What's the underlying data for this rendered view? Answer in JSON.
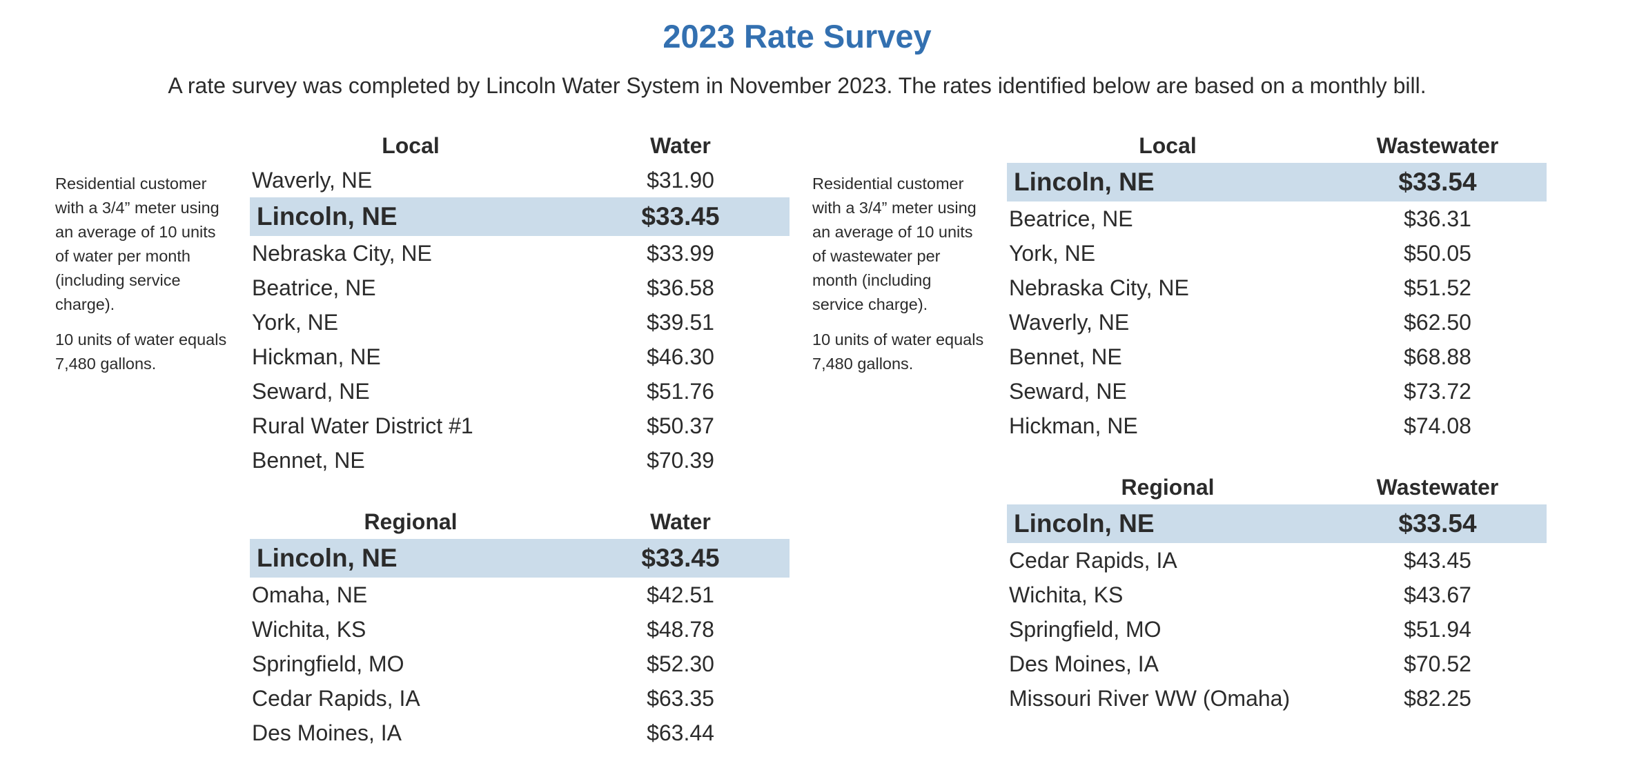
{
  "page": {
    "title": "2023 Rate Survey",
    "intro": "A rate survey was completed by Lincoln Water System in November 2023. The rates identified below are based on a monthly bill."
  },
  "notes": {
    "water": {
      "line1": "Residential customer with a 3/4” meter using an average of 10 units of water per month (including service charge).",
      "line2": "10 units of water equals 7,480 gallons."
    },
    "wastewater": {
      "line1": "Residential customer with a 3/4” meter using an average of 10 units of wastewater per month (including service charge).",
      "line2": "10 units of water equals 7,480 gallons."
    }
  },
  "tables": {
    "water_local": {
      "header_name": "Local",
      "header_value": "Water",
      "rows": [
        {
          "name": "Waverly, NE",
          "value": "$31.90"
        },
        {
          "name": "Lincoln, NE",
          "value": "$33.45"
        },
        {
          "name": "Nebraska City, NE",
          "value": "$33.99"
        },
        {
          "name": "Beatrice, NE",
          "value": "$36.58"
        },
        {
          "name": "York, NE",
          "value": "$39.51"
        },
        {
          "name": "Hickman, NE",
          "value": "$46.30"
        },
        {
          "name": "Seward, NE",
          "value": "$51.76"
        },
        {
          "name": "Rural Water District #1",
          "value": "$50.37"
        },
        {
          "name": "Bennet, NE",
          "value": "$70.39"
        }
      ]
    },
    "water_regional": {
      "header_name": "Regional",
      "header_value": "Water",
      "rows": [
        {
          "name": "Lincoln, NE",
          "value": "$33.45"
        },
        {
          "name": "Omaha, NE",
          "value": "$42.51"
        },
        {
          "name": "Wichita, KS",
          "value": "$48.78"
        },
        {
          "name": "Springfield, MO",
          "value": "$52.30"
        },
        {
          "name": "Cedar Rapids, IA",
          "value": "$63.35"
        },
        {
          "name": "Des Moines, IA",
          "value": "$63.44"
        }
      ]
    },
    "wastewater_local": {
      "header_name": "Local",
      "header_value": "Wastewater",
      "rows": [
        {
          "name": "Lincoln, NE",
          "value": "$33.54"
        },
        {
          "name": "Beatrice, NE",
          "value": "$36.31"
        },
        {
          "name": "York, NE",
          "value": "$50.05"
        },
        {
          "name": "Nebraska City, NE",
          "value": "$51.52"
        },
        {
          "name": "Waverly, NE",
          "value": "$62.50"
        },
        {
          "name": "Bennet, NE",
          "value": "$68.88"
        },
        {
          "name": "Seward, NE",
          "value": "$73.72"
        },
        {
          "name": "Hickman, NE",
          "value": "$74.08"
        }
      ]
    },
    "wastewater_regional": {
      "header_name": "Regional",
      "header_value": "Wastewater",
      "rows": [
        {
          "name": "Lincoln, NE",
          "value": "$33.54"
        },
        {
          "name": "Cedar Rapids, IA",
          "value": "$43.45"
        },
        {
          "name": "Wichita, KS",
          "value": "$43.67"
        },
        {
          "name": "Springfield, MO",
          "value": "$51.94"
        },
        {
          "name": "Des Moines, IA",
          "value": "$70.52"
        },
        {
          "name": "Missouri River WW (Omaha)",
          "value": "$82.25"
        }
      ]
    }
  }
}
